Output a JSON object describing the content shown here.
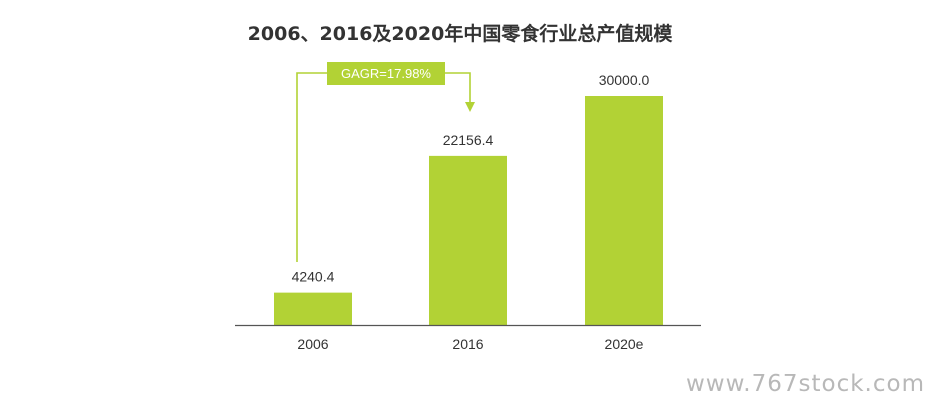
{
  "chart_data": {
    "type": "bar",
    "title": "2006、2016及2020年中国零食行业总产值规模",
    "categories": [
      "2006",
      "2016",
      "2020e"
    ],
    "series": [
      {
        "values": [
          4240.4,
          22156.4,
          30000.0
        ]
      }
    ],
    "value_labels": [
      "4240.4",
      "22156.4",
      "30000.0"
    ],
    "ylim": [
      0,
      30000
    ],
    "grid": false,
    "legend": "none",
    "annotation": {
      "text": "GAGR=17.98%",
      "from": "2006",
      "to": "2016"
    },
    "colors": {
      "bar": "#b2d235",
      "axis": "#555555",
      "text": "#333333"
    }
  },
  "watermark": "www.767stock.com"
}
